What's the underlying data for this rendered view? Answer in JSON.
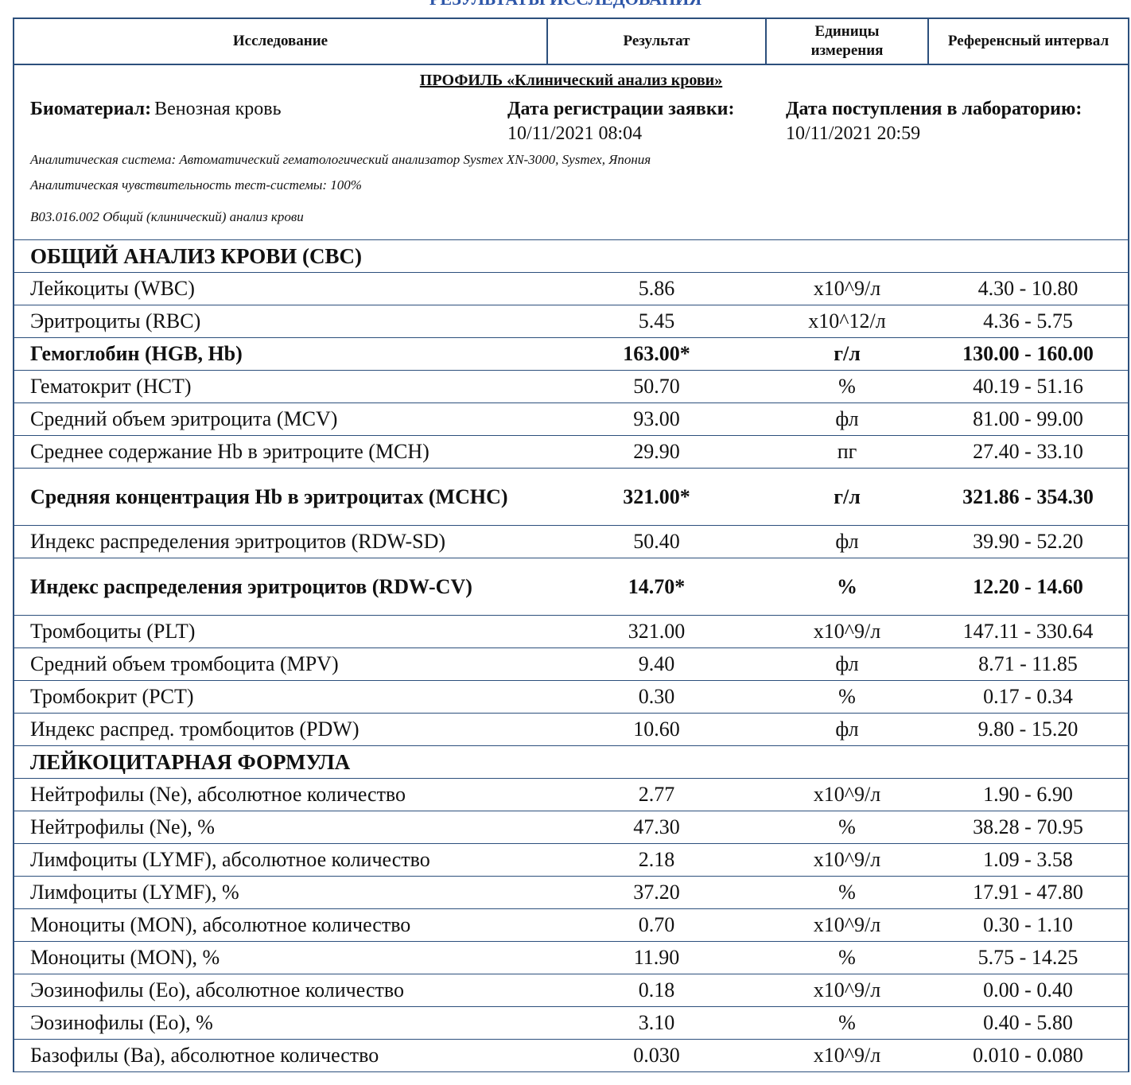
{
  "header": {
    "title": "РЕЗУЛЬТАТЫ ИССЛЕДОВАНИЯ"
  },
  "table": {
    "columns": [
      "Исследование",
      "Результат",
      "Единицы измерения",
      "Референсный интервал"
    ],
    "profile": {
      "title": "ПРОФИЛЬ «Клинический анализ крови»",
      "biomaterial_label": "Биоматериал:",
      "biomaterial": "Венозная кровь",
      "registration_label": "Дата регистрации заявки:",
      "registration_date": "10/11/2021 08:04",
      "arrival_label": "Дата поступления в лабораторию:",
      "arrival_date": "10/11/2021 20:59",
      "notes": [
        "Аналитическая система: Автоматический гематологический анализатор Sysmex XN-3000, Sysmex, Япония",
        "Аналитическая чувствительность тест-системы: 100%",
        "B03.016.002 Общий (клинический) анализ крови"
      ]
    },
    "sections": [
      {
        "title": "ОБЩИЙ АНАЛИЗ КРОВИ (CBC)",
        "rows": [
          {
            "name": "Лейкоциты (WBC)",
            "result": "5.86",
            "unit": "x10^9/л",
            "reference": "4.30 - 10.80"
          },
          {
            "name": "Эритроциты (RBC)",
            "result": "5.45",
            "unit": "x10^12/л",
            "reference": "4.36 - 5.75"
          },
          {
            "name": "Гемоглобин (HGB, Hb)",
            "result": "163.00*",
            "unit": "г/л",
            "reference": "130.00 - 160.00",
            "bold": true
          },
          {
            "name": "Гематокрит (HCT)",
            "result": "50.70",
            "unit": "%",
            "reference": "40.19 - 51.16"
          },
          {
            "name": "Средний объем эритроцита (MCV)",
            "result": "93.00",
            "unit": "фл",
            "reference": "81.00 - 99.00"
          },
          {
            "name": "Среднее содержание Hb в эритроците (MCH)",
            "result": "29.90",
            "unit": "пг",
            "reference": "27.40 - 33.10"
          },
          {
            "name": "Средняя концентрация Hb в эритроцитах (MCHC)",
            "result": "321.00*",
            "unit": "г/л",
            "reference": "321.86 - 354.30",
            "bold": true
          },
          {
            "name": "Индекс распределения эритроцитов (RDW-SD)",
            "result": "50.40",
            "unit": "фл",
            "reference": "39.90 - 52.20"
          },
          {
            "name": "Индекс распределения эритроцитов (RDW-CV)",
            "result": "14.70*",
            "unit": "%",
            "reference": "12.20 - 14.60",
            "bold": true
          },
          {
            "name": "Тромбоциты (PLT)",
            "result": "321.00",
            "unit": "x10^9/л",
            "reference": "147.11 - 330.64"
          },
          {
            "name": "Средний объем тромбоцита (MPV)",
            "result": "9.40",
            "unit": "фл",
            "reference": "8.71 - 11.85"
          },
          {
            "name": "Тромбокрит (PCT)",
            "result": "0.30",
            "unit": "%",
            "reference": "0.17 - 0.34"
          },
          {
            "name": "Индекс распред. тромбоцитов (PDW)",
            "result": "10.60",
            "unit": "фл",
            "reference": "9.80 - 15.20"
          }
        ]
      },
      {
        "title": "ЛЕЙКОЦИТАРНАЯ ФОРМУЛА",
        "rows": [
          {
            "name": "Нейтрофилы (Ne), абсолютное количество",
            "result": "2.77",
            "unit": "x10^9/л",
            "reference": "1.90 - 6.90"
          },
          {
            "name": "Нейтрофилы (Ne), %",
            "result": "47.30",
            "unit": "%",
            "reference": "38.28 - 70.95"
          },
          {
            "name": "Лимфоциты (LYMF), абсолютное количество",
            "result": "2.18",
            "unit": "x10^9/л",
            "reference": "1.09 - 3.58"
          },
          {
            "name": "Лимфоциты (LYMF), %",
            "result": "37.20",
            "unit": "%",
            "reference": "17.91 - 47.80"
          },
          {
            "name": "Моноциты (MON), абсолютное количество",
            "result": "0.70",
            "unit": "x10^9/л",
            "reference": "0.30 - 1.10"
          },
          {
            "name": "Моноциты (MON), %",
            "result": "11.90",
            "unit": "%",
            "reference": "5.75 - 14.25"
          },
          {
            "name": "Эозинофилы (Eo), абсолютное количество",
            "result": "0.18",
            "unit": "x10^9/л",
            "reference": "0.00 - 0.40"
          },
          {
            "name": "Эозинофилы (Eo), %",
            "result": "3.10",
            "unit": "%",
            "reference": "0.40 - 5.80"
          },
          {
            "name": "Базофилы (Ba), абсолютное количество",
            "result": "0.030",
            "unit": "x10^9/л",
            "reference": "0.010 - 0.080"
          }
        ]
      }
    ]
  }
}
